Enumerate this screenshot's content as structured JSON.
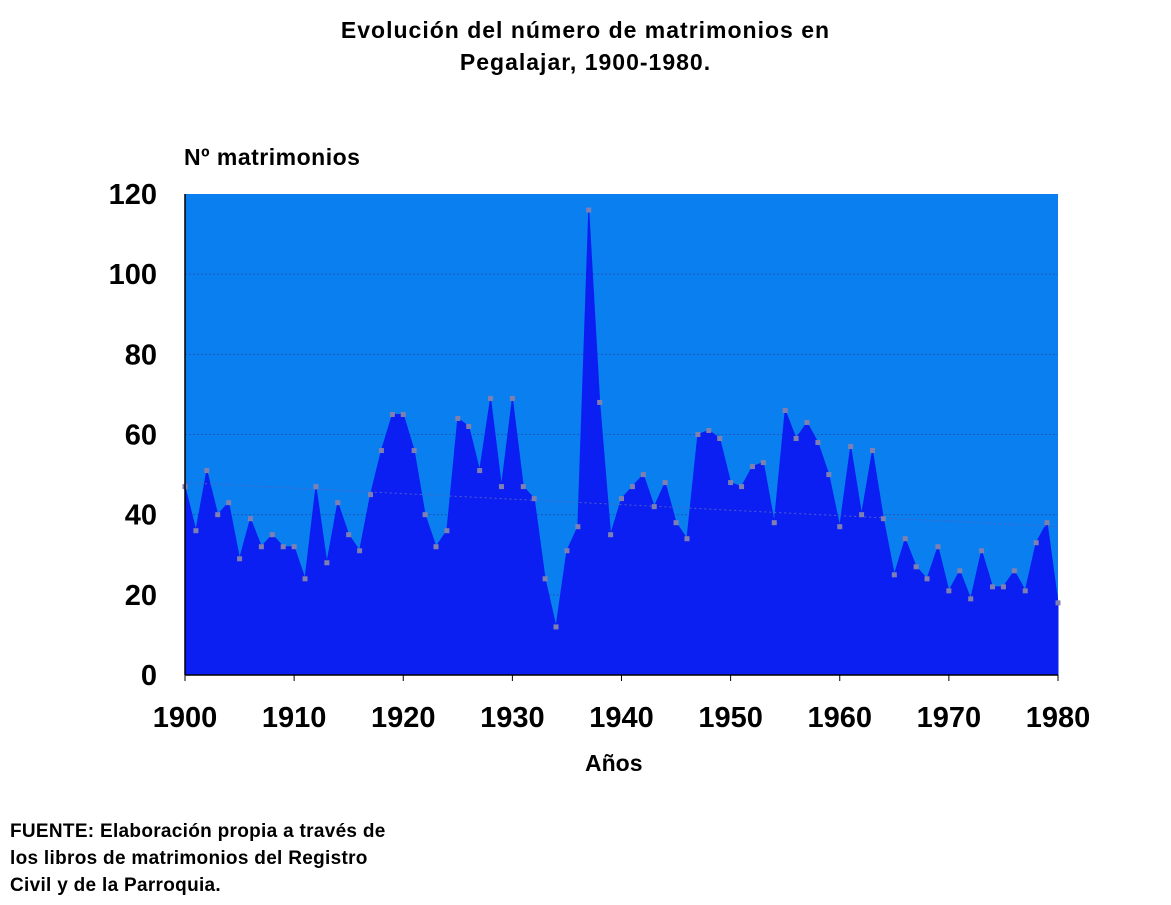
{
  "header": {
    "title_line1": "Evolución del número de matrimonios en",
    "title_line2": "Pegalajar, 1900-1980."
  },
  "footer": {
    "source_line1": "FUENTE: Elaboración propia a través de",
    "source_line2": "los libros de matrimonios del Registro",
    "source_line3": "Civil y de la Parroquia."
  },
  "colors": {
    "plot_background": "#0a7ff0",
    "area_fill": "#0b1ff2",
    "marker": "#8080b0",
    "trend_line": "#5060c0"
  },
  "chart_data": {
    "type": "area",
    "title": "Evolución del número de matrimonios en Pegalajar, 1900-1980.",
    "xlabel": "Años",
    "ylabel": "Nº matrimonios",
    "xlim": [
      1900,
      1980
    ],
    "ylim": [
      0,
      120
    ],
    "x_ticks": [
      1900,
      1910,
      1920,
      1930,
      1940,
      1950,
      1960,
      1970,
      1980
    ],
    "y_ticks": [
      0,
      20,
      40,
      60,
      80,
      100,
      120
    ],
    "grid": "horizontal",
    "legend": "none",
    "x": [
      1900,
      1901,
      1902,
      1903,
      1904,
      1905,
      1906,
      1907,
      1908,
      1909,
      1910,
      1911,
      1912,
      1913,
      1914,
      1915,
      1916,
      1917,
      1918,
      1919,
      1920,
      1921,
      1922,
      1923,
      1924,
      1925,
      1926,
      1927,
      1928,
      1929,
      1930,
      1931,
      1932,
      1933,
      1934,
      1935,
      1936,
      1937,
      1938,
      1939,
      1940,
      1941,
      1942,
      1943,
      1944,
      1945,
      1946,
      1947,
      1948,
      1949,
      1950,
      1951,
      1952,
      1953,
      1954,
      1955,
      1956,
      1957,
      1958,
      1959,
      1960,
      1961,
      1962,
      1963,
      1964,
      1965,
      1966,
      1967,
      1968,
      1969,
      1970,
      1971,
      1972,
      1973,
      1974,
      1975,
      1976,
      1977,
      1978,
      1979,
      1980
    ],
    "values": [
      47,
      36,
      51,
      40,
      43,
      29,
      39,
      32,
      35,
      32,
      32,
      24,
      47,
      28,
      43,
      35,
      31,
      45,
      56,
      65,
      65,
      56,
      40,
      32,
      36,
      64,
      62,
      51,
      69,
      47,
      69,
      47,
      44,
      24,
      12,
      31,
      37,
      116,
      68,
      35,
      44,
      47,
      50,
      42,
      48,
      38,
      34,
      60,
      61,
      59,
      48,
      47,
      52,
      53,
      38,
      66,
      59,
      63,
      58,
      50,
      37,
      57,
      40,
      56,
      39,
      25,
      34,
      27,
      24,
      32,
      21,
      26,
      19,
      31,
      22,
      22,
      26,
      21,
      33,
      38,
      18
    ],
    "trendline": {
      "type": "linear",
      "from": [
        1900,
        48
      ],
      "to": [
        1980,
        37
      ]
    }
  }
}
